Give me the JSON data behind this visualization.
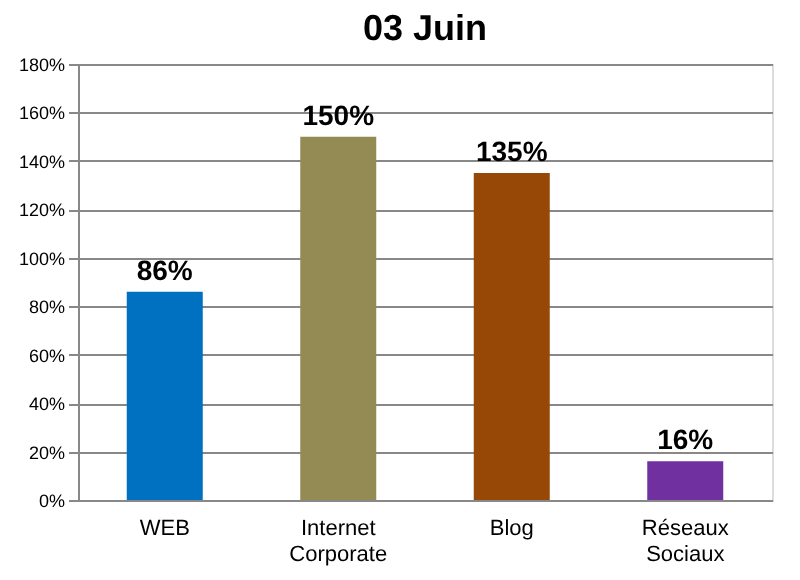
{
  "chart_data": {
    "type": "bar",
    "title": "03 Juin",
    "categories": [
      "WEB",
      "Internet Corporate",
      "Blog",
      "Réseaux Sociaux"
    ],
    "values": [
      86,
      150,
      135,
      16
    ],
    "colors": [
      "#0070c0",
      "#948a54",
      "#974706",
      "#7030a0"
    ],
    "value_labels": [
      "86%",
      "150%",
      "135%",
      "16%"
    ],
    "ylim": [
      0,
      180
    ],
    "yticks": [
      {
        "value": 0,
        "label": "0%"
      },
      {
        "value": 20,
        "label": "20%"
      },
      {
        "value": 40,
        "label": "40%"
      },
      {
        "value": 60,
        "label": "60%"
      },
      {
        "value": 80,
        "label": "80%"
      },
      {
        "value": 100,
        "label": "100%"
      },
      {
        "value": 120,
        "label": "120%"
      },
      {
        "value": 140,
        "label": "140%"
      },
      {
        "value": 160,
        "label": "160%"
      },
      {
        "value": 180,
        "label": "180%"
      }
    ],
    "grid": "y"
  }
}
